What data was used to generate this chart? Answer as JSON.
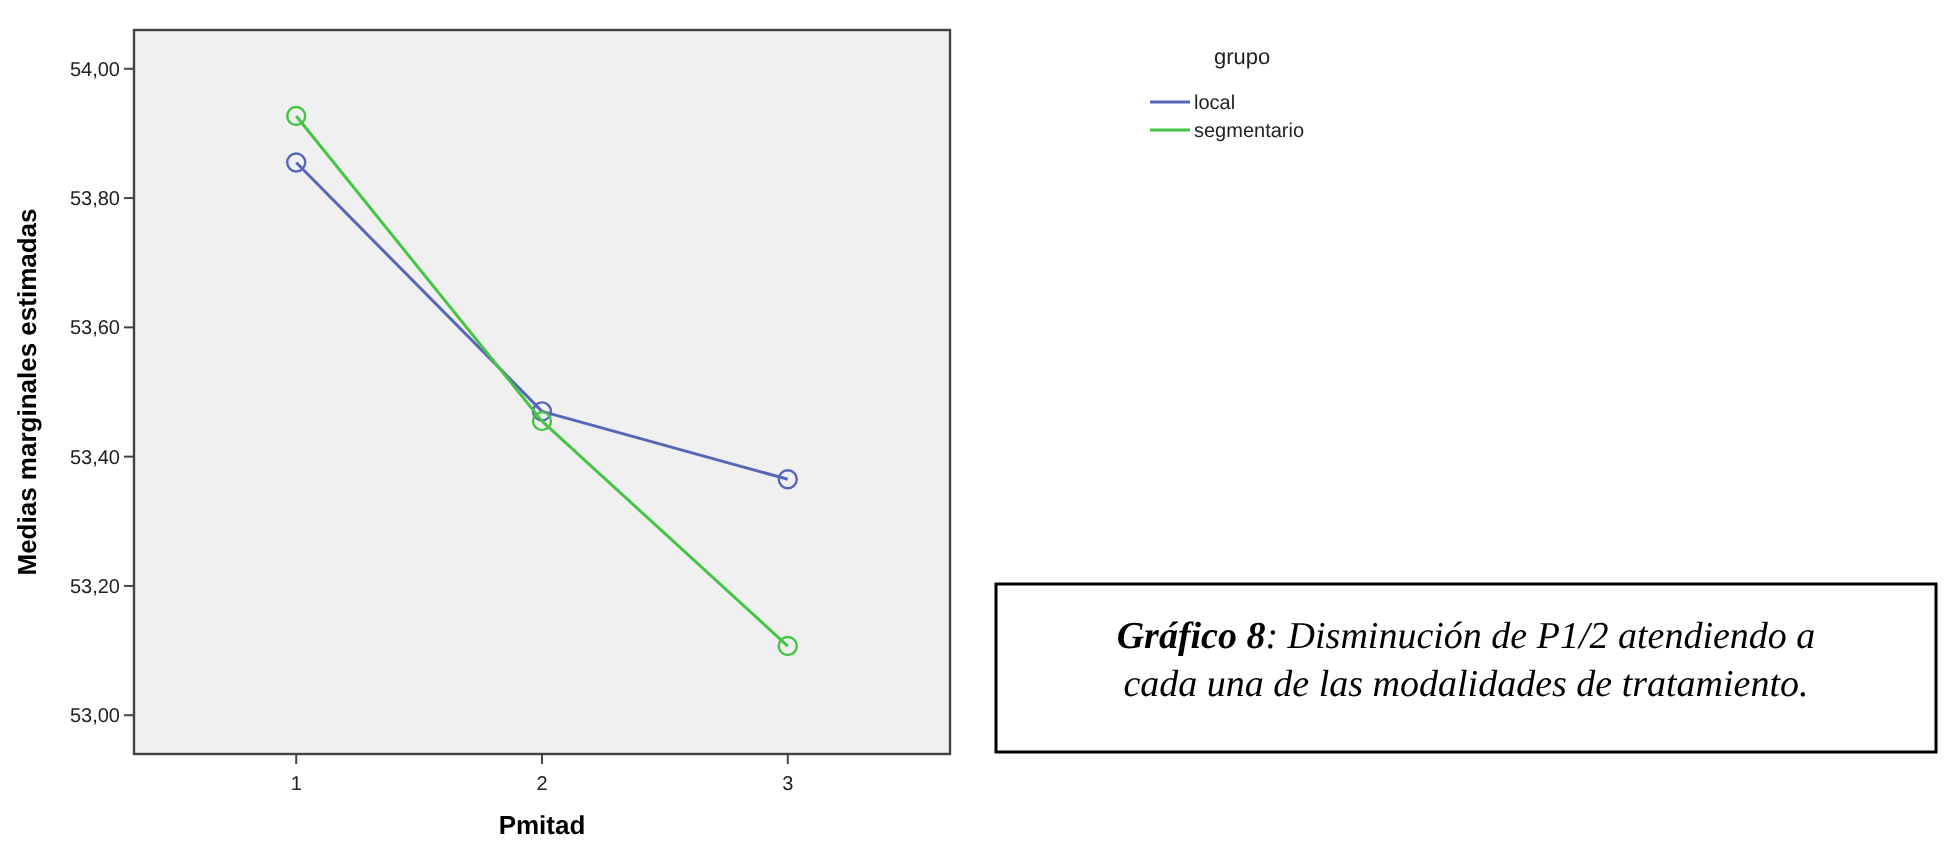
{
  "chart_data": {
    "type": "line",
    "xlabel": "Pmitad",
    "ylabel": "Medias marginales estimadas",
    "legend_title": "grupo",
    "legend": "top right",
    "marker": "circle",
    "line_style": "solid",
    "grid": false,
    "categories": [
      "1",
      "2",
      "3"
    ],
    "series": [
      {
        "name": "local",
        "color": "#5866b8",
        "values": [
          53.855,
          53.47,
          53.365
        ]
      },
      {
        "name": "segmentario",
        "color": "#45c445",
        "values": [
          53.927,
          53.455,
          53.107
        ]
      }
    ],
    "ylim": [
      52.94,
      54.06
    ],
    "yticks": [
      {
        "value": 53,
        "label": "53,00"
      },
      {
        "value": 53.2,
        "label": "53,20"
      },
      {
        "value": 53.4,
        "label": "53,40"
      },
      {
        "value": 53.6,
        "label": "53,60"
      },
      {
        "value": 53.8,
        "label": "53,80"
      },
      {
        "value": 54,
        "label": "54,00"
      }
    ],
    "annotations": [
      "Gráfico 8: Disminución de P1/2 atendiendo a cada una de las modalidades de tratamiento."
    ]
  }
}
